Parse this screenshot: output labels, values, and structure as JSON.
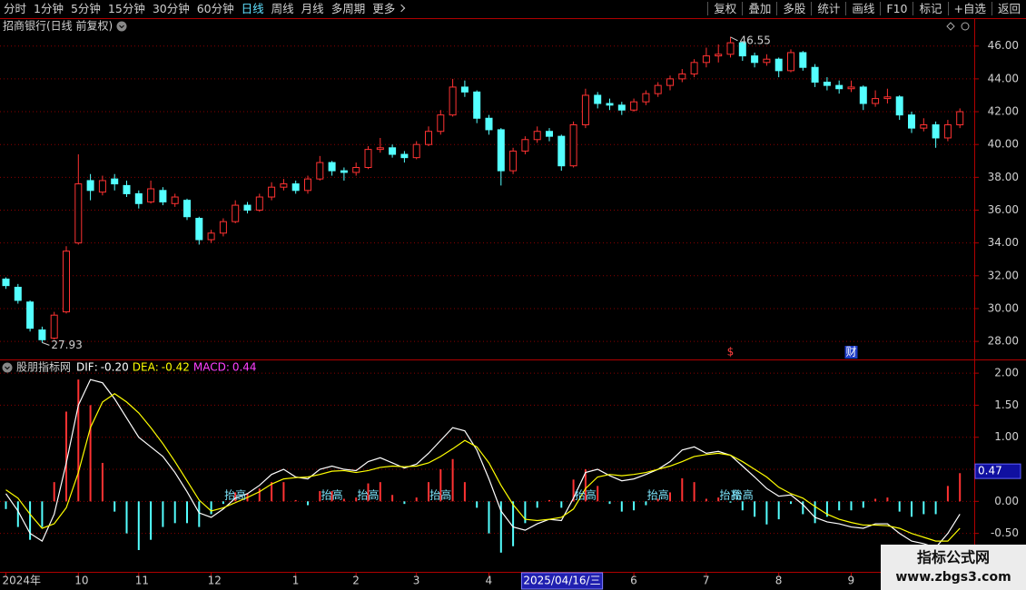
{
  "toolbar": {
    "left": [
      "分时",
      "1分钟",
      "5分钟",
      "15分钟",
      "30分钟",
      "60分钟",
      "日线",
      "周线",
      "月线",
      "多周期",
      "更多"
    ],
    "right": [
      "复权",
      "叠加",
      "多股",
      "统计",
      "画线",
      "F10",
      "标记",
      "+自选",
      "返回"
    ]
  },
  "chart_data": [
    {
      "type": "candlestick",
      "title": "招商银行(日线 前复权)",
      "up_color": "#ff3232",
      "down_color": "#54ffff",
      "categories": [
        "2024年",
        null,
        null,
        null,
        null,
        null,
        "10",
        null,
        null,
        null,
        null,
        "11",
        null,
        null,
        null,
        null,
        null,
        "12",
        null,
        null,
        null,
        null,
        null,
        null,
        "1",
        null,
        null,
        null,
        null,
        "2",
        null,
        null,
        null,
        null,
        "3",
        null,
        null,
        null,
        null,
        null,
        "4",
        null,
        null,
        null,
        null,
        null,
        null,
        null,
        null,
        null,
        null,
        null,
        "6",
        null,
        null,
        null,
        null,
        null,
        "7",
        null,
        null,
        null,
        null,
        null,
        "8",
        null,
        null,
        null,
        null,
        null,
        "9",
        null,
        null,
        null,
        null,
        null,
        null,
        null,
        null,
        null
      ],
      "cursor": {
        "index": 43,
        "label": "2025/04/16/三"
      },
      "ohlc": [
        [
          31.8,
          31.9,
          31.2,
          31.4
        ],
        [
          31.3,
          31.5,
          30.3,
          30.5
        ],
        [
          30.4,
          30.5,
          28.6,
          28.8
        ],
        [
          28.7,
          28.9,
          27.93,
          28.1
        ],
        [
          28.2,
          29.8,
          28.1,
          29.6
        ],
        [
          29.8,
          33.8,
          29.7,
          33.5
        ],
        [
          34.0,
          39.4,
          33.9,
          37.6
        ],
        [
          37.8,
          38.2,
          36.6,
          37.2
        ],
        [
          37.1,
          38.1,
          36.9,
          37.8
        ],
        [
          37.9,
          38.2,
          37.2,
          37.6
        ],
        [
          37.5,
          37.8,
          36.8,
          37.0
        ],
        [
          37.0,
          37.2,
          36.1,
          36.4
        ],
        [
          36.5,
          37.8,
          36.4,
          37.3
        ],
        [
          37.2,
          37.4,
          36.3,
          36.5
        ],
        [
          36.4,
          37.0,
          36.2,
          36.8
        ],
        [
          36.6,
          36.7,
          35.4,
          35.6
        ],
        [
          35.5,
          35.6,
          33.9,
          34.2
        ],
        [
          34.2,
          34.8,
          34.0,
          34.6
        ],
        [
          34.6,
          35.5,
          34.4,
          35.3
        ],
        [
          35.3,
          36.6,
          35.2,
          36.3
        ],
        [
          36.3,
          36.5,
          35.8,
          36.0
        ],
        [
          36.0,
          37.0,
          35.9,
          36.8
        ],
        [
          36.8,
          37.7,
          36.6,
          37.4
        ],
        [
          37.4,
          37.9,
          37.2,
          37.6
        ],
        [
          37.6,
          37.8,
          37.0,
          37.2
        ],
        [
          37.2,
          38.1,
          37.0,
          37.9
        ],
        [
          37.9,
          39.3,
          37.8,
          38.9
        ],
        [
          38.9,
          39.0,
          38.1,
          38.4
        ],
        [
          38.4,
          38.6,
          37.8,
          38.3
        ],
        [
          38.3,
          38.9,
          38.1,
          38.6
        ],
        [
          38.6,
          39.9,
          38.5,
          39.7
        ],
        [
          39.7,
          40.4,
          39.5,
          39.8
        ],
        [
          39.8,
          40.0,
          39.2,
          39.4
        ],
        [
          39.4,
          39.6,
          38.9,
          39.2
        ],
        [
          39.2,
          40.2,
          39.1,
          40.0
        ],
        [
          40.0,
          41.1,
          39.9,
          40.8
        ],
        [
          40.8,
          42.1,
          40.6,
          41.8
        ],
        [
          41.8,
          44.0,
          41.7,
          43.5
        ],
        [
          43.5,
          43.9,
          42.9,
          43.2
        ],
        [
          43.2,
          43.3,
          41.3,
          41.6
        ],
        [
          41.6,
          41.8,
          40.6,
          40.9
        ],
        [
          40.9,
          41.0,
          37.5,
          38.4
        ],
        [
          38.4,
          39.8,
          38.2,
          39.6
        ],
        [
          39.6,
          40.5,
          39.4,
          40.3
        ],
        [
          40.3,
          41.1,
          40.1,
          40.8
        ],
        [
          40.8,
          41.0,
          40.2,
          40.5
        ],
        [
          40.5,
          40.6,
          38.4,
          38.7
        ],
        [
          38.7,
          41.4,
          38.6,
          41.2
        ],
        [
          41.2,
          43.4,
          41.0,
          43.0
        ],
        [
          43.0,
          43.2,
          42.2,
          42.5
        ],
        [
          42.5,
          42.8,
          42.1,
          42.4
        ],
        [
          42.4,
          42.6,
          41.8,
          42.1
        ],
        [
          42.1,
          42.8,
          42.0,
          42.6
        ],
        [
          42.6,
          43.3,
          42.4,
          43.1
        ],
        [
          43.1,
          43.8,
          42.9,
          43.6
        ],
        [
          43.6,
          44.2,
          43.3,
          44.0
        ],
        [
          44.0,
          44.6,
          43.8,
          44.3
        ],
        [
          44.3,
          45.2,
          44.1,
          45.0
        ],
        [
          45.0,
          45.9,
          44.7,
          45.4
        ],
        [
          45.4,
          46.1,
          45.0,
          45.5
        ],
        [
          45.5,
          46.55,
          45.3,
          46.2
        ],
        [
          46.2,
          46.3,
          45.1,
          45.4
        ],
        [
          45.4,
          45.6,
          44.7,
          45.0
        ],
        [
          45.0,
          45.5,
          44.8,
          45.2
        ],
        [
          45.2,
          45.3,
          44.1,
          44.5
        ],
        [
          44.5,
          45.8,
          44.4,
          45.6
        ],
        [
          45.6,
          45.7,
          44.5,
          44.7
        ],
        [
          44.7,
          44.9,
          43.5,
          43.8
        ],
        [
          43.8,
          44.1,
          43.3,
          43.6
        ],
        [
          43.6,
          43.9,
          43.1,
          43.4
        ],
        [
          43.4,
          43.9,
          43.2,
          43.5
        ],
        [
          43.5,
          43.6,
          42.1,
          42.5
        ],
        [
          42.5,
          43.3,
          42.3,
          42.8
        ],
        [
          42.8,
          43.4,
          42.5,
          42.9
        ],
        [
          42.9,
          43.0,
          41.5,
          41.8
        ],
        [
          41.8,
          42.0,
          40.7,
          41.0
        ],
        [
          41.0,
          41.6,
          40.8,
          41.2
        ],
        [
          41.2,
          41.4,
          39.8,
          40.4
        ],
        [
          40.4,
          41.5,
          40.2,
          41.2
        ],
        [
          41.2,
          42.2,
          41.0,
          42.0
        ]
      ],
      "high_index": 60,
      "low_index": 3,
      "events": [
        {
          "index": 60,
          "text": "$",
          "color": "#ff4040"
        },
        {
          "index": 70,
          "text": "财",
          "color": "#ffffff",
          "background": "#1e3cc8"
        }
      ],
      "ylim": [
        26.9,
        47.7
      ],
      "yticks": [
        {
          "value": 28,
          "label": "28.00"
        },
        {
          "value": 30,
          "label": "30.00"
        },
        {
          "value": 32,
          "label": "32.00"
        },
        {
          "value": 34,
          "label": "34.00"
        },
        {
          "value": 36,
          "label": "36.00"
        },
        {
          "value": 38,
          "label": "38.00"
        },
        {
          "value": 40,
          "label": "40.00"
        },
        {
          "value": 42,
          "label": "42.00"
        },
        {
          "value": 44,
          "label": "44.00"
        },
        {
          "value": 46,
          "label": "46.00"
        }
      ],
      "grid": true
    },
    {
      "type": "macd",
      "title": "股朋指标网",
      "series": [
        {
          "name": "DIF",
          "color": "#ffffff",
          "value_label": "-0.20",
          "values": [
            0.12,
            -0.15,
            -0.5,
            -0.62,
            -0.2,
            0.6,
            1.5,
            1.9,
            1.85,
            1.6,
            1.3,
            1.0,
            0.85,
            0.7,
            0.45,
            0.15,
            -0.18,
            -0.25,
            -0.12,
            0.05,
            0.12,
            0.25,
            0.42,
            0.5,
            0.38,
            0.35,
            0.5,
            0.55,
            0.5,
            0.48,
            0.62,
            0.68,
            0.6,
            0.52,
            0.58,
            0.75,
            0.95,
            1.15,
            1.1,
            0.8,
            0.35,
            -0.15,
            -0.4,
            -0.45,
            -0.35,
            -0.28,
            -0.3,
            0.05,
            0.45,
            0.5,
            0.4,
            0.32,
            0.35,
            0.42,
            0.5,
            0.62,
            0.8,
            0.85,
            0.75,
            0.78,
            0.72,
            0.55,
            0.38,
            0.2,
            0.08,
            0.1,
            -0.05,
            -0.25,
            -0.32,
            -0.35,
            -0.4,
            -0.42,
            -0.35,
            -0.35,
            -0.5,
            -0.62,
            -0.66,
            -0.72,
            -0.5,
            -0.2
          ]
        },
        {
          "name": "DEA",
          "color": "#ffff00",
          "value_label": "-0.42",
          "values": [
            0.18,
            0.05,
            -0.2,
            -0.42,
            -0.35,
            -0.1,
            0.45,
            1.15,
            1.55,
            1.68,
            1.55,
            1.38,
            1.15,
            0.9,
            0.62,
            0.32,
            0.02,
            -0.15,
            -0.1,
            -0.02,
            0.06,
            0.15,
            0.27,
            0.35,
            0.37,
            0.38,
            0.42,
            0.47,
            0.48,
            0.45,
            0.48,
            0.53,
            0.55,
            0.54,
            0.55,
            0.6,
            0.7,
            0.82,
            0.95,
            0.85,
            0.6,
            0.25,
            -0.05,
            -0.28,
            -0.3,
            -0.28,
            -0.25,
            -0.12,
            0.2,
            0.38,
            0.42,
            0.4,
            0.42,
            0.45,
            0.5,
            0.55,
            0.62,
            0.7,
            0.73,
            0.75,
            0.72,
            0.62,
            0.5,
            0.38,
            0.22,
            0.12,
            0.05,
            -0.08,
            -0.2,
            -0.28,
            -0.33,
            -0.37,
            -0.37,
            -0.38,
            -0.42,
            -0.5,
            -0.56,
            -0.62,
            -0.62,
            -0.42
          ]
        },
        {
          "name": "MACD",
          "color": "#ff40ff",
          "up_color": "#ff3232",
          "down_color": "#54ffff",
          "value_label": "0.44",
          "values": [
            -0.12,
            -0.4,
            -0.6,
            -0.4,
            0.3,
            1.4,
            1.9,
            1.5,
            0.6,
            -0.16,
            -0.5,
            -0.76,
            -0.6,
            -0.4,
            -0.34,
            -0.34,
            -0.4,
            -0.2,
            -0.04,
            0.14,
            0.12,
            0.2,
            0.3,
            0.3,
            0.02,
            -0.06,
            0.16,
            0.16,
            0.04,
            0.06,
            0.28,
            0.3,
            0.1,
            -0.04,
            0.06,
            0.3,
            0.5,
            0.66,
            0.3,
            -0.1,
            -0.5,
            -0.8,
            -0.7,
            -0.34,
            -0.1,
            0.02,
            -0.1,
            0.34,
            0.5,
            0.24,
            -0.04,
            -0.16,
            -0.14,
            -0.06,
            0.04,
            0.14,
            0.36,
            0.3,
            0.04,
            0.06,
            -0.02,
            -0.14,
            -0.24,
            -0.36,
            -0.28,
            -0.04,
            -0.2,
            -0.34,
            -0.24,
            -0.14,
            -0.14,
            -0.1,
            0.04,
            0.06,
            -0.16,
            -0.24,
            -0.2,
            -0.2,
            0.24,
            0.44
          ]
        }
      ],
      "signals": [
        {
          "index": 19,
          "text": "抬高"
        },
        {
          "index": 27,
          "text": "抬高"
        },
        {
          "index": 30,
          "text": "抬高"
        },
        {
          "index": 36,
          "text": "抬高"
        },
        {
          "index": 48,
          "text": "抬高"
        },
        {
          "index": 54,
          "text": "抬高"
        },
        {
          "index": 60,
          "text": "抬高"
        },
        {
          "index": 61,
          "text": "抬高"
        }
      ],
      "cursor_label": {
        "value": 0.47,
        "label": "0.47"
      },
      "ylim": [
        -1.1,
        2.2
      ],
      "yticks": [
        {
          "value": -0.5,
          "label": "-0.50"
        },
        {
          "value": 0,
          "label": "0.00"
        },
        {
          "value": 0.5,
          "label": "0.50"
        },
        {
          "value": 1,
          "label": "1.00"
        },
        {
          "value": 1.5,
          "label": "1.50"
        },
        {
          "value": 2,
          "label": "2.00"
        }
      ],
      "grid": true
    }
  ],
  "watermark": {
    "title": "指标公式网",
    "url": "www.zbgs3.com"
  }
}
